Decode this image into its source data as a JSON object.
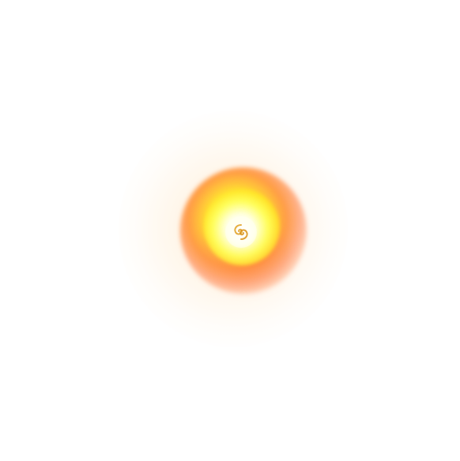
{
  "scene": {
    "subject": "glowing-orb",
    "colors": {
      "background": "#ffffff",
      "halo": "#ffe4c4",
      "outer": "#ff8a3c",
      "mid": "#ffd828",
      "core": "#ffff78",
      "center": "#ffffff",
      "swirl": "#e0a020"
    },
    "icon": "swirl-icon"
  }
}
